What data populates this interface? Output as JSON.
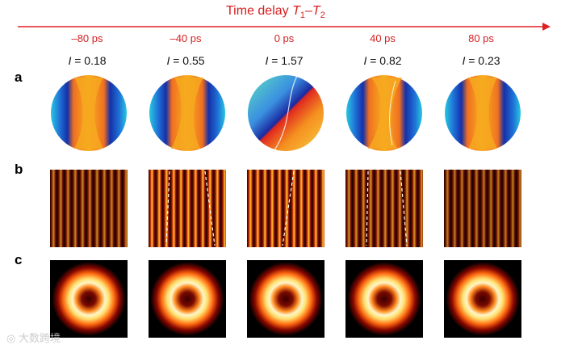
{
  "header": {
    "title_prefix": "Time delay ",
    "t1_symbol": "T",
    "t1_sub": "1",
    "dash": "–",
    "t2_symbol": "T",
    "t2_sub": "2"
  },
  "columns": [
    {
      "delay": "–80 ps",
      "intensity_symbol": "I",
      "intensity_text": " = 0.18"
    },
    {
      "delay": "–40 ps",
      "intensity_symbol": "I",
      "intensity_text": " = 0.55"
    },
    {
      "delay": "0 ps",
      "intensity_symbol": "I",
      "intensity_text": " = 1.57"
    },
    {
      "delay": "40 ps",
      "intensity_symbol": "I",
      "intensity_text": " = 0.82"
    },
    {
      "delay": "80 ps",
      "intensity_symbol": "I",
      "intensity_text": " = 0.23"
    }
  ],
  "row_labels": {
    "a": "a",
    "b": "b",
    "c": "c"
  },
  "watermark": "大数跨境",
  "colors": {
    "accent_red": "#d42020",
    "arrow": "#e02020"
  }
}
